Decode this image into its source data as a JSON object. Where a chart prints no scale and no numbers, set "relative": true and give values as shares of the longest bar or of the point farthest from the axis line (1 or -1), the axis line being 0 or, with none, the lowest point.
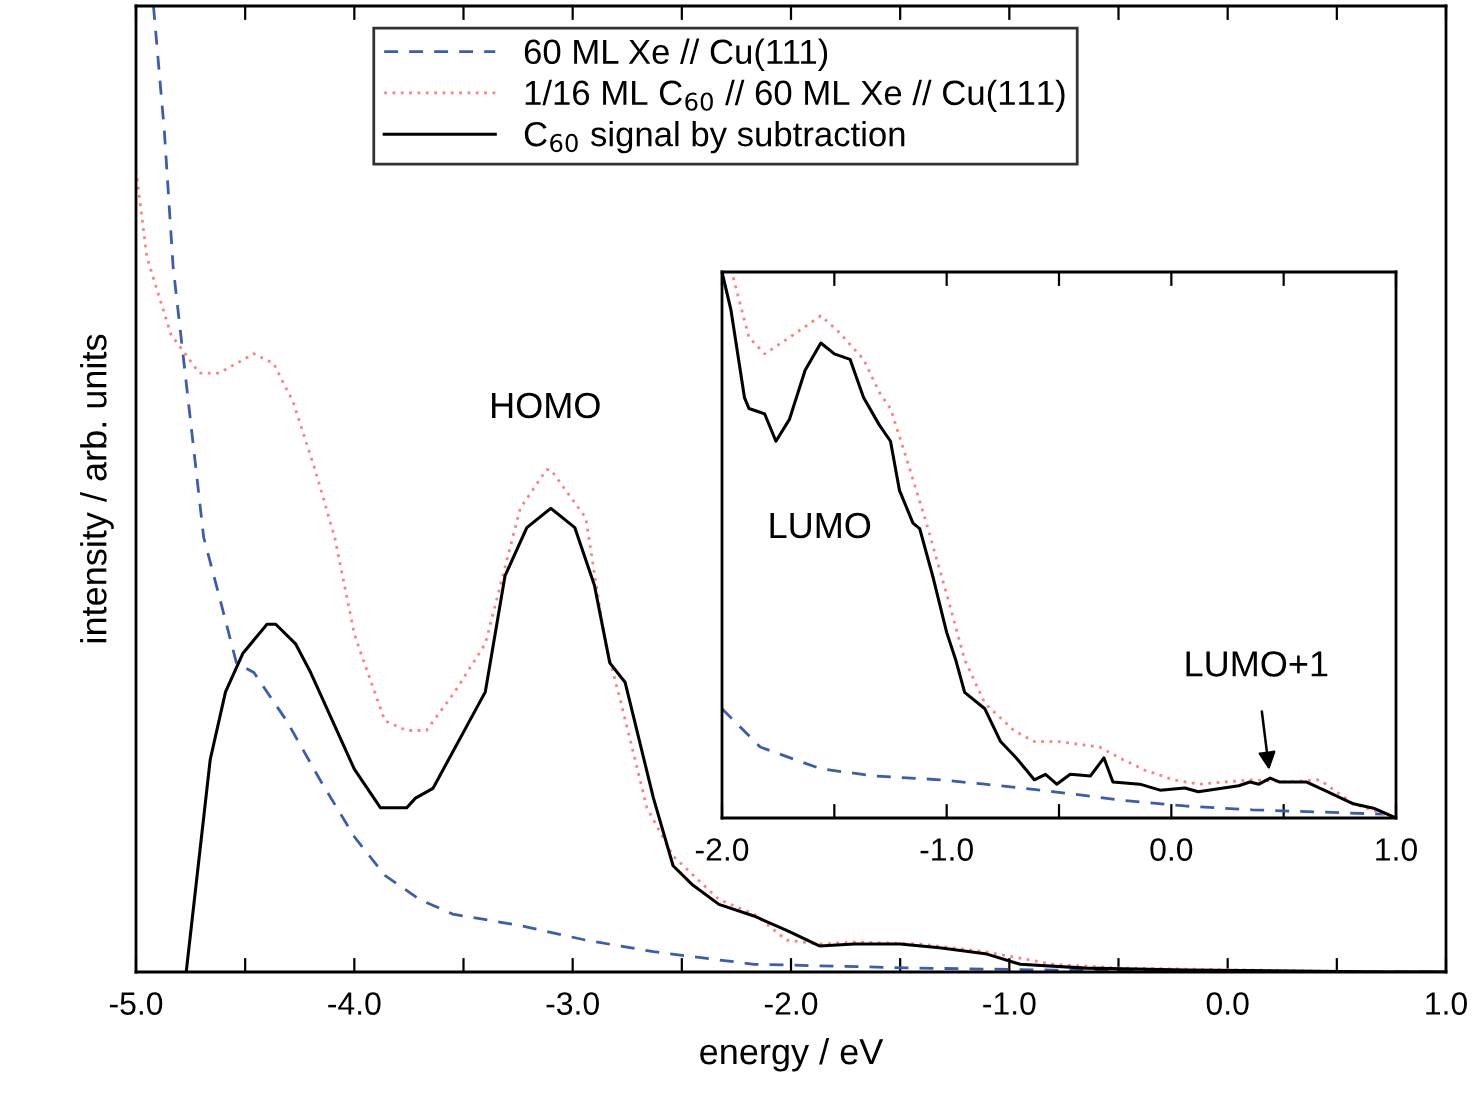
{
  "chart_data": [
    {
      "type": "line",
      "relative": true,
      "xlabel": "energy / eV",
      "ylabel": "intensity / arb. units",
      "legend": "top",
      "xlim": [
        -5.0,
        1.0
      ],
      "xticks": [
        {
          "value": -5,
          "label": "-5.0"
        },
        {
          "value": -4.5,
          "label": null
        },
        {
          "value": -4,
          "label": "-4.0"
        },
        {
          "value": -3.5,
          "label": null
        },
        {
          "value": -3,
          "label": "-3.0"
        },
        {
          "value": -2.5,
          "label": null
        },
        {
          "value": -2,
          "label": "-2.0"
        },
        {
          "value": -1.5,
          "label": null
        },
        {
          "value": -1,
          "label": "-1.0"
        },
        {
          "value": -0.5,
          "label": null
        },
        {
          "value": 0,
          "label": "0.0"
        },
        {
          "value": 0.5,
          "label": null
        },
        {
          "value": 1,
          "label": "1.0"
        }
      ],
      "series": [
        {
          "name": "60 ML Xe // Cu(111)",
          "color": "#3a5db0",
          "line_style": "dashed",
          "x": [
            -4.92,
            -4.87,
            -4.83,
            -4.78,
            -4.69,
            -4.62,
            -4.54,
            -4.46,
            -4.31,
            -4.16,
            -4.0,
            -3.86,
            -3.7,
            -3.55,
            -3.24,
            -2.94,
            -2.63,
            -2.17,
            -1.41,
            -0.8,
            0.72,
            1.0
          ],
          "values": [
            1.0,
            0.87,
            0.73,
            0.63,
            0.45,
            0.39,
            0.32,
            0.31,
            0.26,
            0.2,
            0.14,
            0.1,
            0.075,
            0.06,
            0.048,
            0.033,
            0.021,
            0.008,
            0.004,
            0.002,
            0.0,
            0.0
          ]
        },
        {
          "name": "1/16 ML C$_{60}$ // 60 ML Xe // Cu(111)",
          "color": "#ff8080",
          "line_style": "dotted",
          "x": [
            -5.0,
            -4.95,
            -4.84,
            -4.71,
            -4.62,
            -4.46,
            -4.37,
            -4.28,
            -4.18,
            -4.09,
            -4.0,
            -3.97,
            -3.86,
            -3.76,
            -3.67,
            -3.54,
            -3.4,
            -3.24,
            -3.12,
            -3.1,
            -2.94,
            -2.85,
            -2.78,
            -2.66,
            -2.54,
            -2.33,
            -2.17,
            -2.02,
            -1.87,
            -1.71,
            -1.41,
            -1.11,
            -0.8,
            -0.49,
            0.72,
            1.0
          ],
          "values": [
            0.83,
            0.74,
            0.66,
            0.62,
            0.62,
            0.64,
            0.63,
            0.59,
            0.52,
            0.45,
            0.35,
            0.33,
            0.26,
            0.25,
            0.25,
            0.29,
            0.34,
            0.48,
            0.52,
            0.52,
            0.47,
            0.34,
            0.28,
            0.17,
            0.12,
            0.075,
            0.06,
            0.033,
            0.029,
            0.031,
            0.029,
            0.021,
            0.008,
            0.004,
            0.0,
            0.0
          ]
        },
        {
          "name": "C$_{60}$ signal by subtraction",
          "color": "#000000",
          "line_style": "solid",
          "x": [
            -4.77,
            -4.66,
            -4.59,
            -4.51,
            -4.4,
            -4.36,
            -4.27,
            -4.2,
            -4.0,
            -3.88,
            -3.82,
            -3.76,
            -3.72,
            -3.64,
            -3.4,
            -3.31,
            -3.21,
            -3.1,
            -2.99,
            -2.9,
            -2.83,
            -2.76,
            -2.63,
            -2.54,
            -2.45,
            -2.33,
            -2.17,
            -2.02,
            -1.87,
            -1.71,
            -1.5,
            -1.32,
            -1.11,
            -0.95,
            -0.65,
            -0.19,
            0.72,
            1.0
          ],
          "values": [
            0.0,
            0.22,
            0.29,
            0.33,
            0.36,
            0.36,
            0.34,
            0.31,
            0.21,
            0.17,
            0.17,
            0.17,
            0.18,
            0.19,
            0.29,
            0.41,
            0.46,
            0.48,
            0.46,
            0.4,
            0.32,
            0.3,
            0.18,
            0.11,
            0.09,
            0.07,
            0.058,
            0.043,
            0.027,
            0.029,
            0.029,
            0.025,
            0.019,
            0.008,
            0.004,
            0.002,
            0.0,
            0.0
          ]
        }
      ],
      "annotations": [
        {
          "text": "HOMO",
          "x": -3.1,
          "y": 0.52
        }
      ]
    },
    {
      "type": "line",
      "relative": true,
      "xlim": [
        -2.0,
        1.0
      ],
      "xticks": [
        {
          "value": -2,
          "label": "-2.0"
        },
        {
          "value": -1.5,
          "label": null
        },
        {
          "value": -1,
          "label": "-1.0"
        },
        {
          "value": -0.5,
          "label": null
        },
        {
          "value": 0,
          "label": "0.0"
        },
        {
          "value": 0.5,
          "label": null
        },
        {
          "value": 1,
          "label": "1.0"
        }
      ],
      "series": [
        {
          "color": "#3a5db0",
          "line_style": "dashed",
          "x": [
            -2.0,
            -1.83,
            -1.56,
            -1.32,
            -1.03,
            -0.83,
            -0.52,
            -0.23,
            0.06,
            0.36,
            0.95
          ],
          "values": [
            0.2,
            0.13,
            0.09,
            0.077,
            0.07,
            0.062,
            0.048,
            0.033,
            0.022,
            0.015,
            0.007
          ]
        },
        {
          "color": "#ff8080",
          "line_style": "dotted",
          "x": [
            -1.95,
            -1.88,
            -1.81,
            -1.7,
            -1.56,
            -1.48,
            -1.37,
            -1.3,
            -1.25,
            -1.18,
            -1.09,
            -1.0,
            -0.92,
            -0.83,
            -0.7,
            -0.61,
            -0.5,
            -0.32,
            -0.23,
            -0.12,
            0.01,
            0.12,
            0.36,
            0.51,
            0.66,
            0.81,
            1.0
          ],
          "values": [
            0.99,
            0.88,
            0.85,
            0.88,
            0.92,
            0.89,
            0.84,
            0.78,
            0.75,
            0.66,
            0.54,
            0.41,
            0.29,
            0.21,
            0.16,
            0.14,
            0.14,
            0.13,
            0.11,
            0.088,
            0.07,
            0.062,
            0.07,
            0.066,
            0.07,
            0.026,
            0.0
          ]
        },
        {
          "color": "#000000",
          "line_style": "solid",
          "x": [
            -2.0,
            -1.96,
            -1.9,
            -1.88,
            -1.81,
            -1.76,
            -1.7,
            -1.63,
            -1.56,
            -1.5,
            -1.43,
            -1.37,
            -1.3,
            -1.25,
            -1.21,
            -1.15,
            -1.12,
            -1.06,
            -1.0,
            -0.96,
            -0.92,
            -0.83,
            -0.76,
            -0.69,
            -0.61,
            -0.56,
            -0.51,
            -0.45,
            -0.36,
            -0.3,
            -0.26,
            -0.14,
            -0.05,
            0.06,
            0.12,
            0.3,
            0.35,
            0.39,
            0.44,
            0.48,
            0.6,
            0.68,
            0.81,
            0.9,
            1.0
          ],
          "values": [
            1.0,
            0.93,
            0.77,
            0.75,
            0.74,
            0.69,
            0.73,
            0.82,
            0.87,
            0.85,
            0.84,
            0.77,
            0.72,
            0.69,
            0.6,
            0.54,
            0.53,
            0.44,
            0.34,
            0.29,
            0.23,
            0.2,
            0.14,
            0.11,
            0.07,
            0.08,
            0.062,
            0.08,
            0.077,
            0.11,
            0.066,
            0.062,
            0.051,
            0.055,
            0.048,
            0.059,
            0.066,
            0.062,
            0.073,
            0.066,
            0.066,
            0.051,
            0.026,
            0.018,
            0.0
          ]
        }
      ],
      "annotations": [
        "LUMO",
        {
          "text": "LUMO+1",
          "x": 0.44,
          "y": 0.073
        }
      ]
    }
  ]
}
